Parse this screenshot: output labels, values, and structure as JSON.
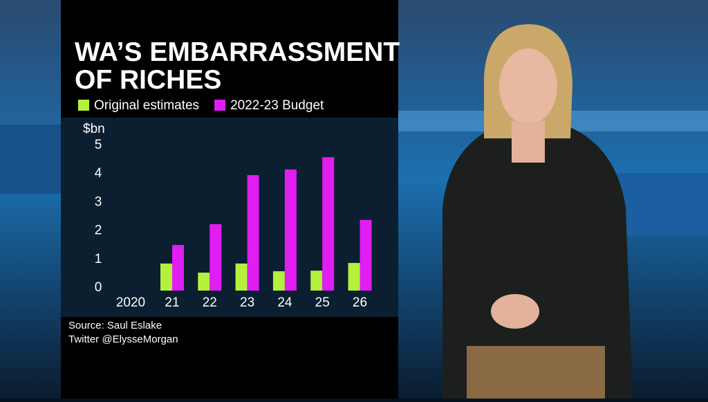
{
  "chart_data": {
    "type": "bar",
    "title": "WA’S EMBARRASSMENT OF RICHES",
    "y_unit": "$bn",
    "categories": [
      "2020",
      "21",
      "22",
      "23",
      "24",
      "25",
      "26"
    ],
    "series": [
      {
        "name": "Original estimates",
        "color": "#b4f03c",
        "values": [
          null,
          0.95,
          0.63,
          0.95,
          0.68,
          0.7,
          0.97
        ]
      },
      {
        "name": "2022-23 Budget",
        "color": "#e01ef2",
        "values": [
          null,
          1.6,
          2.33,
          4.05,
          4.25,
          4.68,
          2.48
        ]
      }
    ],
    "ylim": [
      0,
      5
    ],
    "yticks": [
      0,
      1,
      2,
      3,
      4,
      5
    ],
    "grid": false,
    "source": [
      "Source: Saul Eslake",
      "Twitter @ElysseMorgan"
    ]
  }
}
